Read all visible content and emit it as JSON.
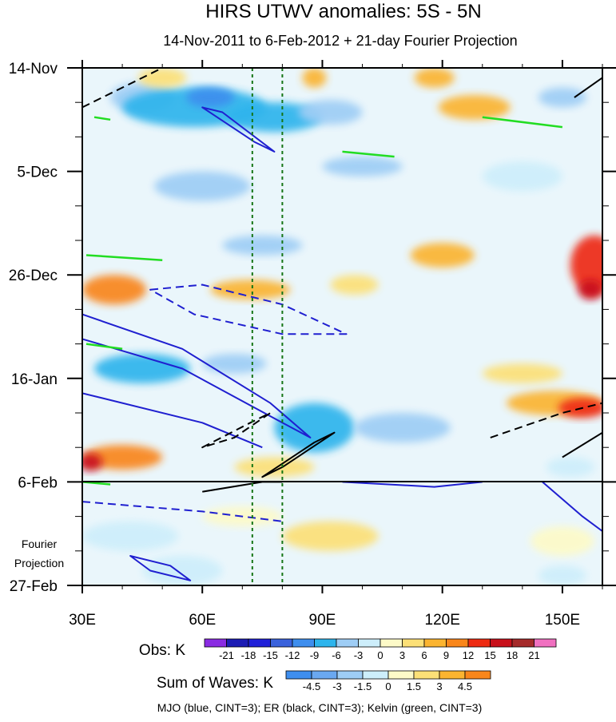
{
  "chart_data": {
    "type": "heatmap",
    "title": "HIRS UTWV anomalies: 5S - 5N",
    "subtitle": "14-Nov-2011 to 6-Feb-2012 + 21-day Fourier Projection",
    "x_axis": {
      "range": [
        30,
        160
      ],
      "ticks": [
        30,
        60,
        90,
        120,
        150
      ],
      "tick_labels": [
        "30E",
        "60E",
        "90E",
        "120E",
        "150E"
      ]
    },
    "y_axis": {
      "range_days": [
        0,
        105
      ],
      "ticks_days": [
        0,
        21,
        42,
        63,
        84,
        105
      ],
      "tick_labels": [
        "14-Nov",
        "5-Dec",
        "26-Dec",
        "16-Jan",
        "6-Feb",
        "27-Feb"
      ]
    },
    "projection_label": [
      "Fourier",
      "Projection"
    ],
    "vertical_reference_lines_lon": [
      72.5,
      80
    ],
    "obs_colorbar": {
      "label": "Obs: K",
      "levels": [
        "-21",
        "-18",
        "-15",
        "-12",
        "-9",
        "-6",
        "-3",
        "0",
        "3",
        "6",
        "9",
        "12",
        "15",
        "18",
        "21"
      ],
      "colors": [
        "#8a2be2",
        "#1c1cb4",
        "#2020d8",
        "#3a62dc",
        "#3e8eee",
        "#2db4ec",
        "#9ecdf5",
        "#cdeefb",
        "#fdfac8",
        "#fce077",
        "#fbb430",
        "#f9861a",
        "#ee2b12",
        "#c8101a",
        "#a52a2a",
        "#f070c0"
      ]
    },
    "waves_colorbar": {
      "label": "Sum of Waves: K",
      "levels": [
        "-4.5",
        "-3",
        "-1.5",
        "0",
        "1.5",
        "3",
        "4.5"
      ],
      "colors": [
        "#3e8eee",
        "#6aa8f0",
        "#9ecdf5",
        "#cdeefb",
        "#fdfac8",
        "#fce077",
        "#fbb430",
        "#f9861a"
      ]
    },
    "anomaly_regions": [
      {
        "lon": 45,
        "day": 6,
        "rx": 8,
        "ry": 3,
        "value": -6
      },
      {
        "lon": 58,
        "day": 8,
        "rx": 18,
        "ry": 4,
        "value": -9
      },
      {
        "lon": 62,
        "day": 6,
        "rx": 6,
        "ry": 2,
        "value": -12
      },
      {
        "lon": 78,
        "day": 10,
        "rx": 12,
        "ry": 3,
        "value": -9
      },
      {
        "lon": 92,
        "day": 9,
        "rx": 8,
        "ry": 2.5,
        "value": -6
      },
      {
        "lon": 50,
        "day": 2,
        "rx": 6,
        "ry": 2,
        "value": 3
      },
      {
        "lon": 88,
        "day": 2,
        "rx": 3,
        "ry": 2,
        "value": 6
      },
      {
        "lon": 118,
        "day": 2,
        "rx": 5,
        "ry": 2,
        "value": 6
      },
      {
        "lon": 128,
        "day": 8,
        "rx": 9,
        "ry": 2.5,
        "value": 6
      },
      {
        "lon": 150,
        "day": 6,
        "rx": 6,
        "ry": 2,
        "value": -6
      },
      {
        "lon": 60,
        "day": 24,
        "rx": 12,
        "ry": 3,
        "value": -6
      },
      {
        "lon": 100,
        "day": 20,
        "rx": 10,
        "ry": 2,
        "value": -6
      },
      {
        "lon": 140,
        "day": 22,
        "rx": 10,
        "ry": 3,
        "value": -3
      },
      {
        "lon": 75,
        "day": 36,
        "rx": 10,
        "ry": 2,
        "value": -6
      },
      {
        "lon": 38,
        "day": 45,
        "rx": 8,
        "ry": 3,
        "value": 9
      },
      {
        "lon": 72,
        "day": 45,
        "rx": 10,
        "ry": 2,
        "value": 6
      },
      {
        "lon": 120,
        "day": 38,
        "rx": 8,
        "ry": 2.5,
        "value": 6
      },
      {
        "lon": 158,
        "day": 40,
        "rx": 6,
        "ry": 6,
        "value": 12
      },
      {
        "lon": 157,
        "day": 45,
        "rx": 3,
        "ry": 2,
        "value": 15
      },
      {
        "lon": 98,
        "day": 44,
        "rx": 6,
        "ry": 2,
        "value": 3
      },
      {
        "lon": 45,
        "day": 61,
        "rx": 12,
        "ry": 3,
        "value": -9
      },
      {
        "lon": 68,
        "day": 60,
        "rx": 8,
        "ry": 2,
        "value": -6
      },
      {
        "lon": 88,
        "day": 73,
        "rx": 10,
        "ry": 5,
        "value": -9
      },
      {
        "lon": 110,
        "day": 73,
        "rx": 12,
        "ry": 3,
        "value": -6
      },
      {
        "lon": 148,
        "day": 68,
        "rx": 12,
        "ry": 2.5,
        "value": 6
      },
      {
        "lon": 155,
        "day": 69,
        "rx": 6,
        "ry": 2,
        "value": 12
      },
      {
        "lon": 140,
        "day": 62,
        "rx": 10,
        "ry": 2,
        "value": 3
      },
      {
        "lon": 40,
        "day": 79,
        "rx": 10,
        "ry": 2.5,
        "value": 9
      },
      {
        "lon": 32,
        "day": 80,
        "rx": 3,
        "ry": 1.8,
        "value": 15
      },
      {
        "lon": 78,
        "day": 81,
        "rx": 10,
        "ry": 2,
        "value": 3
      },
      {
        "lon": 152,
        "day": 81,
        "rx": 6,
        "ry": 2,
        "value": -3
      },
      {
        "lon": 42,
        "day": 95,
        "rx": 12,
        "ry": 3,
        "value": -1.5
      },
      {
        "lon": 55,
        "day": 102,
        "rx": 10,
        "ry": 3,
        "value": -3
      },
      {
        "lon": 70,
        "day": 91,
        "rx": 10,
        "ry": 2,
        "value": 1.5
      },
      {
        "lon": 92,
        "day": 95,
        "rx": 12,
        "ry": 3,
        "value": 3
      },
      {
        "lon": 150,
        "day": 96,
        "rx": 8,
        "ry": 3,
        "value": 1.5
      },
      {
        "lon": 150,
        "day": 103,
        "rx": 6,
        "ry": 2,
        "value": -1.5
      }
    ],
    "wave_contours": [
      {
        "wave": "MJO",
        "color": "#1f1fd0",
        "sign": "positive",
        "points": [
          [
            60,
            8
          ],
          [
            73,
            15
          ],
          [
            78,
            17
          ],
          [
            65,
            9
          ]
        ]
      },
      {
        "wave": "MJO",
        "color": "#1f1fd0",
        "sign": "positive",
        "points": [
          [
            30,
            55
          ],
          [
            55,
            61
          ],
          [
            80,
            72
          ],
          [
            87,
            75
          ],
          [
            77,
            68
          ],
          [
            55,
            57
          ],
          [
            30,
            50
          ]
        ]
      },
      {
        "wave": "MJO",
        "color": "#1f1fd0",
        "sign": "positive",
        "points": [
          [
            30,
            66
          ],
          [
            60,
            72
          ],
          [
            75,
            77
          ]
        ]
      },
      {
        "wave": "MJO",
        "color": "#1f1fd0",
        "sign": "negative",
        "points": [
          [
            47,
            45
          ],
          [
            60,
            44
          ],
          [
            80,
            48
          ],
          [
            96,
            54
          ],
          [
            80,
            54
          ],
          [
            58,
            50
          ]
        ]
      },
      {
        "wave": "MJO",
        "color": "#1f1fd0",
        "sign": "negative",
        "points": [
          [
            30,
            88
          ],
          [
            60,
            90
          ],
          [
            80,
            92
          ]
        ]
      },
      {
        "wave": "MJO",
        "color": "#1f1fd0",
        "sign": "positive",
        "points": [
          [
            42,
            99
          ],
          [
            52,
            101
          ],
          [
            57,
            104
          ],
          [
            47,
            102
          ]
        ]
      },
      {
        "wave": "MJO",
        "color": "#1f1fd0",
        "sign": "positive",
        "points": [
          [
            95,
            84
          ],
          [
            118,
            85
          ],
          [
            130,
            84
          ]
        ]
      },
      {
        "wave": "MJO",
        "color": "#1f1fd0",
        "sign": "positive",
        "points": [
          [
            145,
            84
          ],
          [
            155,
            91
          ],
          [
            160,
            94
          ]
        ]
      },
      {
        "wave": "ER",
        "color": "#000000",
        "sign": "negative",
        "points": [
          [
            30,
            8
          ],
          [
            50,
            0
          ]
        ]
      },
      {
        "wave": "ER",
        "color": "#000000",
        "sign": "positive",
        "points": [
          [
            153,
            6
          ],
          [
            160,
            2
          ]
        ]
      },
      {
        "wave": "ER",
        "color": "#000000",
        "sign": "negative",
        "points": [
          [
            60,
            77
          ],
          [
            72,
            72
          ],
          [
            77,
            70
          ],
          [
            68,
            75
          ]
        ]
      },
      {
        "wave": "ER",
        "color": "#000000",
        "sign": "positive",
        "points": [
          [
            75,
            83
          ],
          [
            88,
            76
          ],
          [
            93,
            74
          ],
          [
            80,
            81
          ]
        ]
      },
      {
        "wave": "ER",
        "color": "#000000",
        "sign": "negative",
        "points": [
          [
            132,
            75
          ],
          [
            150,
            70
          ],
          [
            160,
            68
          ]
        ]
      },
      {
        "wave": "ER",
        "color": "#000000",
        "sign": "positive",
        "points": [
          [
            150,
            79
          ],
          [
            160,
            74
          ],
          [
            160,
            76
          ]
        ]
      },
      {
        "wave": "ER",
        "color": "#000000",
        "sign": "positive",
        "points": [
          [
            60,
            86
          ],
          [
            75,
            84
          ],
          [
            80,
            84
          ]
        ]
      },
      {
        "wave": "Kelvin",
        "color": "#22dd22",
        "sign": "positive",
        "points": [
          [
            33,
            10
          ],
          [
            37,
            10.5
          ]
        ]
      },
      {
        "wave": "Kelvin",
        "color": "#22dd22",
        "sign": "positive",
        "points": [
          [
            130,
            10
          ],
          [
            150,
            12
          ]
        ]
      },
      {
        "wave": "Kelvin",
        "color": "#22dd22",
        "sign": "positive",
        "points": [
          [
            95,
            17
          ],
          [
            108,
            18
          ]
        ]
      },
      {
        "wave": "Kelvin",
        "color": "#22dd22",
        "sign": "positive",
        "points": [
          [
            31,
            38
          ],
          [
            50,
            39
          ]
        ]
      },
      {
        "wave": "Kelvin",
        "color": "#22dd22",
        "sign": "positive",
        "points": [
          [
            31,
            56
          ],
          [
            40,
            57
          ]
        ]
      },
      {
        "wave": "Kelvin",
        "color": "#22dd22",
        "sign": "positive",
        "points": [
          [
            30,
            84
          ],
          [
            37,
            84.5
          ]
        ]
      }
    ],
    "legend_note": "MJO (blue, CINT=3); ER (black, CINT=3); Kelvin (green, CINT=3)"
  }
}
